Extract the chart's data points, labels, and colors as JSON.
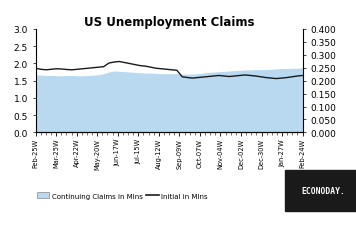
{
  "title": "US Unemployment Claims",
  "x_labels": [
    "Feb-25W",
    "Mar-25W",
    "Apr-22W",
    "May-20W",
    "Jun-17W",
    "Jul-15W",
    "Aug-12W",
    "Sep-09W",
    "Oct-07W",
    "Nov-04W",
    "Dec-02W",
    "Dec-30W",
    "Jan-27W",
    "Feb-24W"
  ],
  "left_ylim": [
    0.0,
    3.0
  ],
  "right_ylim": [
    0.0,
    0.4
  ],
  "left_yticks": [
    0.0,
    0.5,
    1.0,
    1.5,
    2.0,
    2.5,
    3.0
  ],
  "right_yticks": [
    0.0,
    0.05,
    0.1,
    0.15,
    0.2,
    0.25,
    0.3,
    0.35,
    0.4
  ],
  "right_yticklabels": [
    "0.000",
    "0.050",
    "0.100",
    "0.150",
    "0.200",
    "0.250",
    "0.300",
    "0.350",
    "0.400"
  ],
  "fill_color": "#b8d9f0",
  "line_color": "#1a1a1a",
  "background_color": "#ffffff",
  "legend_fill_label": "Continuing Claims in Mlns",
  "legend_line_label": "Initial in Mlns",
  "econoday_bg": "#1a1a1a",
  "econoday_text": "#ffffff",
  "continuing_claims": [
    1.65,
    1.64,
    1.63,
    1.63,
    1.62,
    1.62,
    1.63,
    1.63,
    1.62,
    1.62,
    1.63,
    1.64,
    1.65,
    1.68,
    1.73,
    1.76,
    1.75,
    1.74,
    1.73,
    1.72,
    1.71,
    1.7,
    1.7,
    1.69,
    1.68,
    1.68,
    1.68,
    1.68,
    1.67,
    1.67,
    1.67,
    1.68,
    1.7,
    1.72,
    1.73,
    1.74,
    1.75,
    1.76,
    1.77,
    1.78,
    1.79,
    1.79,
    1.8,
    1.8,
    1.8,
    1.81,
    1.82,
    1.83,
    1.83,
    1.84,
    1.84,
    1.85
  ],
  "initial_claims": [
    0.248,
    0.244,
    0.242,
    0.244,
    0.246,
    0.245,
    0.243,
    0.242,
    0.244,
    0.246,
    0.248,
    0.25,
    0.252,
    0.254,
    0.268,
    0.272,
    0.274,
    0.27,
    0.266,
    0.262,
    0.258,
    0.256,
    0.252,
    0.248,
    0.246,
    0.244,
    0.242,
    0.24,
    0.215,
    0.212,
    0.21,
    0.212,
    0.214,
    0.216,
    0.218,
    0.22,
    0.218,
    0.216,
    0.218,
    0.22,
    0.222,
    0.22,
    0.218,
    0.215,
    0.212,
    0.21,
    0.208,
    0.21,
    0.212,
    0.215,
    0.218,
    0.22
  ]
}
